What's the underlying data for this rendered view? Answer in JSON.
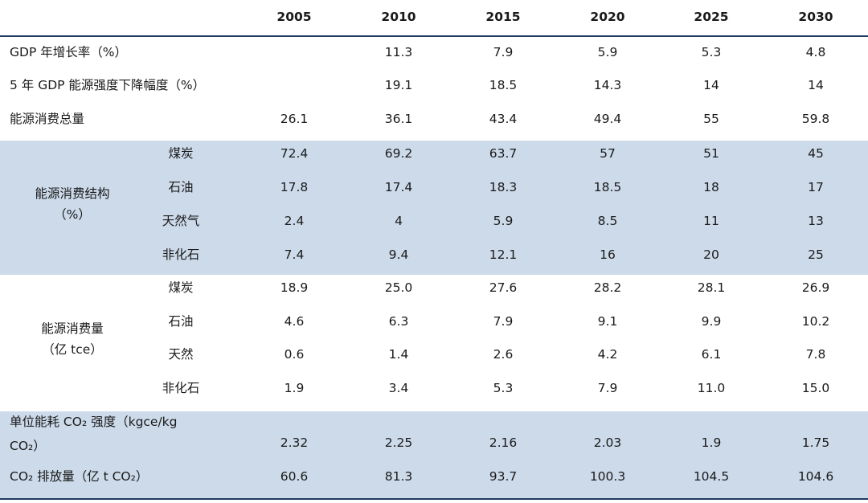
{
  "years": [
    "2005",
    "2010",
    "2015",
    "2020",
    "2025",
    "2030"
  ],
  "rows": {
    "gdp_growth": {
      "label": "GDP 年增长率（%）",
      "values": [
        "",
        "11.3",
        "7.9",
        "5.9",
        "5.3",
        "4.8"
      ]
    },
    "gdp_intensity": {
      "label": "5 年 GDP 能源强度下降幅度（%）",
      "values": [
        "",
        "19.1",
        "18.5",
        "14.3",
        "14",
        "14"
      ]
    },
    "total_energy": {
      "label": "能源消费总量",
      "values": [
        "26.1",
        "36.1",
        "43.4",
        "49.4",
        "55",
        "59.8"
      ]
    }
  },
  "structure": {
    "label_line1": "能源消费结构",
    "label_line2": "（%）",
    "items": [
      {
        "name": "煤炭",
        "values": [
          "72.4",
          "69.2",
          "63.7",
          "57",
          "51",
          "45"
        ]
      },
      {
        "name": "石油",
        "values": [
          "17.8",
          "17.4",
          "18.3",
          "18.5",
          "18",
          "17"
        ]
      },
      {
        "name": "天然气",
        "values": [
          "2.4",
          "4",
          "5.9",
          "8.5",
          "11",
          "13"
        ]
      },
      {
        "name": "非化石",
        "values": [
          "7.4",
          "9.4",
          "12.1",
          "16",
          "20",
          "25"
        ]
      }
    ]
  },
  "consumption": {
    "label_line1": "能源消费量",
    "label_line2": "（亿 tce）",
    "items": [
      {
        "name": "煤炭",
        "values": [
          "18.9",
          "25.0",
          "27.6",
          "28.2",
          "28.1",
          "26.9"
        ]
      },
      {
        "name": "石油",
        "values": [
          "4.6",
          "6.3",
          "7.9",
          "9.1",
          "9.9",
          "10.2"
        ]
      },
      {
        "name": "天然",
        "values": [
          "0.6",
          "1.4",
          "2.6",
          "4.2",
          "6.1",
          "7.8"
        ]
      },
      {
        "name": "非化石",
        "values": [
          "1.9",
          "3.4",
          "5.3",
          "7.9",
          "11.0",
          "15.0"
        ]
      }
    ]
  },
  "co2_intensity": {
    "label_line1": "单位能耗 CO₂ 强度（kgce/kg",
    "label_line2": "CO₂）",
    "values": [
      "2.32",
      "2.25",
      "2.16",
      "2.03",
      "1.9",
      "1.75"
    ]
  },
  "co2_emissions": {
    "label": "CO₂ 排放量（亿 t CO₂）",
    "values": [
      "60.6",
      "81.3",
      "93.7",
      "100.3",
      "104.5",
      "104.6"
    ]
  },
  "colors": {
    "band": "#ccdaea",
    "rule": "#1f3b63"
  }
}
